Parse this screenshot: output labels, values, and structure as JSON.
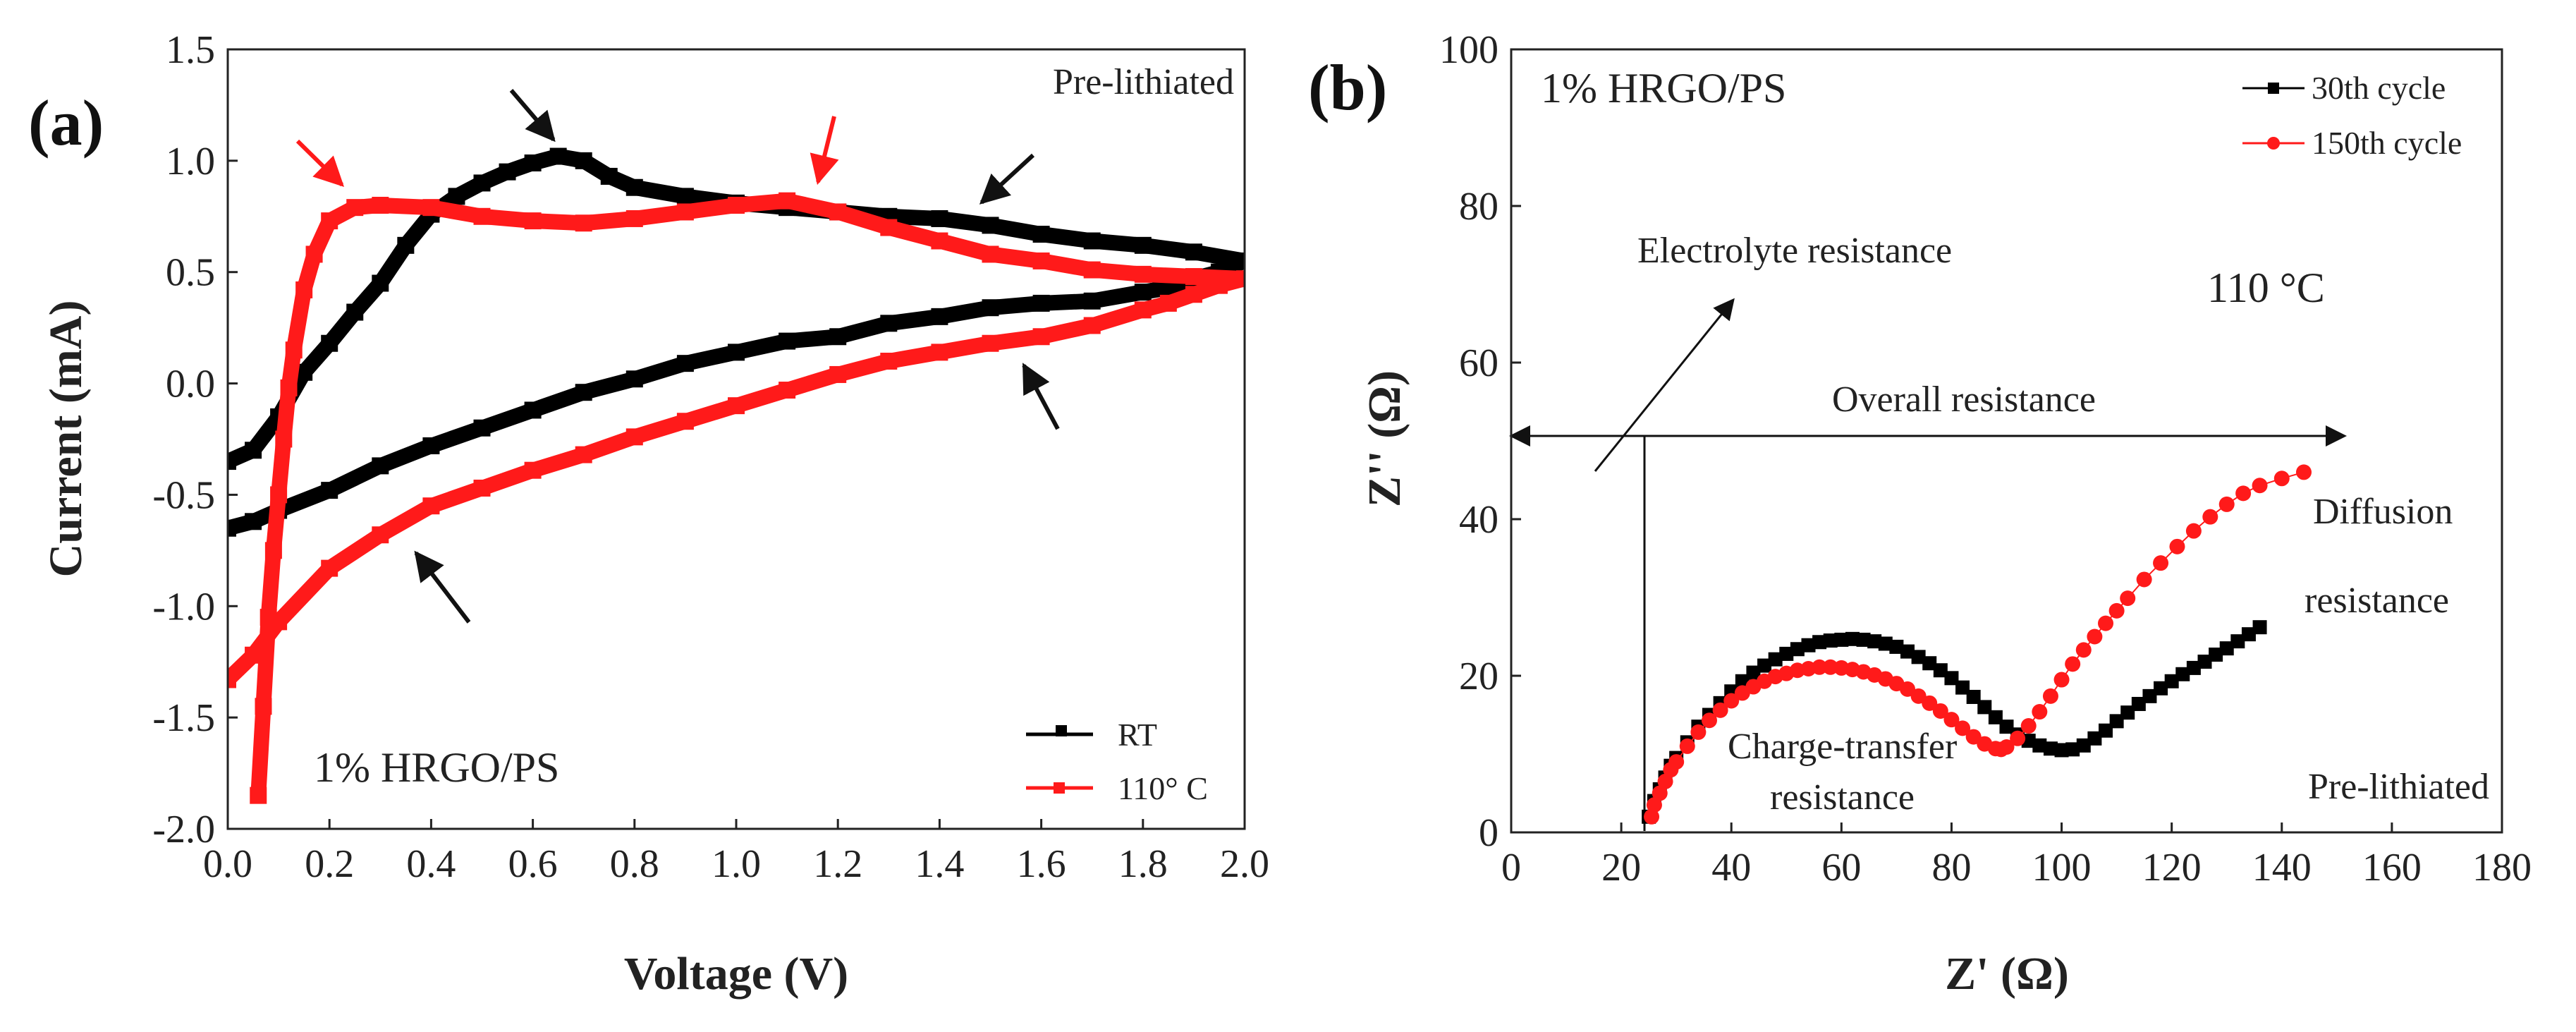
{
  "chart_data": [
    {
      "panel_label": "(a)",
      "type": "line",
      "xlabel": "Voltage (V)",
      "ylabel": "Current (mA)",
      "xlim": [
        0.0,
        2.0
      ],
      "ylim": [
        -2.0,
        1.5
      ],
      "xticks": [
        "0.0",
        "0.2",
        "0.4",
        "0.6",
        "0.8",
        "1.0",
        "1.2",
        "1.4",
        "1.6",
        "1.8",
        "2.0"
      ],
      "yticks": [
        "-2.0",
        "-1.5",
        "-1.0",
        "-0.5",
        "0.0",
        "0.5",
        "1.0",
        "1.5"
      ],
      "annotations": {
        "pre_lithiated": "Pre-lithiated",
        "material": "1% HRGO/PS"
      },
      "legend": {
        "position": "bottom-right",
        "entries": [
          {
            "name": "RT"
          },
          {
            "name": "110° C"
          }
        ]
      },
      "series": [
        {
          "name": "RT",
          "color": "#000000",
          "x": [
            0.0,
            0.05,
            0.1,
            0.15,
            0.2,
            0.25,
            0.3,
            0.35,
            0.4,
            0.45,
            0.5,
            0.55,
            0.6,
            0.65,
            0.7,
            0.75,
            0.8,
            0.9,
            1.0,
            1.1,
            1.2,
            1.3,
            1.4,
            1.5,
            1.6,
            1.7,
            1.8,
            1.9,
            2.0,
            1.95,
            1.9,
            1.85,
            1.8,
            1.7,
            1.6,
            1.5,
            1.4,
            1.3,
            1.2,
            1.1,
            1.0,
            0.9,
            0.8,
            0.7,
            0.6,
            0.5,
            0.4,
            0.3,
            0.2,
            0.1,
            0.05,
            0.0
          ],
          "y": [
            -0.35,
            -0.3,
            -0.15,
            0.05,
            0.18,
            0.32,
            0.45,
            0.62,
            0.76,
            0.84,
            0.9,
            0.95,
            0.99,
            1.02,
            1.0,
            0.93,
            0.88,
            0.84,
            0.81,
            0.79,
            0.77,
            0.75,
            0.74,
            0.71,
            0.67,
            0.64,
            0.62,
            0.59,
            0.55,
            0.5,
            0.47,
            0.43,
            0.41,
            0.37,
            0.36,
            0.34,
            0.3,
            0.27,
            0.21,
            0.19,
            0.14,
            0.09,
            0.02,
            -0.04,
            -0.12,
            -0.2,
            -0.28,
            -0.37,
            -0.48,
            -0.57,
            -0.62,
            -0.65
          ]
        },
        {
          "name": "110° C",
          "color": "#ff1a1a",
          "x": [
            0.06,
            0.07,
            0.08,
            0.09,
            0.1,
            0.11,
            0.12,
            0.13,
            0.15,
            0.17,
            0.2,
            0.25,
            0.3,
            0.4,
            0.5,
            0.6,
            0.7,
            0.8,
            0.9,
            1.0,
            1.1,
            1.2,
            1.3,
            1.4,
            1.5,
            1.6,
            1.7,
            1.8,
            1.9,
            2.0,
            1.95,
            1.9,
            1.85,
            1.8,
            1.7,
            1.6,
            1.5,
            1.4,
            1.3,
            1.2,
            1.1,
            1.0,
            0.9,
            0.8,
            0.7,
            0.6,
            0.5,
            0.4,
            0.3,
            0.2,
            0.1,
            0.05,
            0.0
          ],
          "y": [
            -1.85,
            -1.45,
            -1.05,
            -0.75,
            -0.5,
            -0.25,
            -0.02,
            0.15,
            0.42,
            0.58,
            0.73,
            0.79,
            0.8,
            0.79,
            0.75,
            0.73,
            0.72,
            0.74,
            0.77,
            0.8,
            0.82,
            0.77,
            0.7,
            0.64,
            0.58,
            0.55,
            0.51,
            0.49,
            0.48,
            0.47,
            0.44,
            0.4,
            0.36,
            0.33,
            0.26,
            0.21,
            0.18,
            0.14,
            0.1,
            0.04,
            -0.03,
            -0.1,
            -0.17,
            -0.24,
            -0.32,
            -0.39,
            -0.47,
            -0.55,
            -0.68,
            -0.83,
            -1.07,
            -1.22,
            -1.33
          ]
        }
      ]
    },
    {
      "panel_label": "(b)",
      "type": "scatter",
      "xlabel": "Z' (Ω)",
      "ylabel": "Z'' (Ω)",
      "xlim": [
        0,
        180
      ],
      "ylim": [
        0,
        100
      ],
      "xticks": [
        "0",
        "20",
        "40",
        "60",
        "80",
        "100",
        "120",
        "140",
        "160",
        "180"
      ],
      "yticks": [
        "0",
        "20",
        "40",
        "60",
        "80",
        "100"
      ],
      "annotations": {
        "material": "1% HRGO/PS",
        "electrolyte_resistance": "Electrolyte resistance",
        "overall_resistance": "Overall resistance",
        "temperature": "110 °C",
        "diffusion_resistance_line1": "Diffusion",
        "diffusion_resistance_line2": "resistance",
        "charge_transfer_line1": "Charge-transfer",
        "charge_transfer_line2": "resistance",
        "pre_lithiated": "Pre-lithiated"
      },
      "legend": {
        "position": "top-right",
        "entries": [
          {
            "name": "30th cycle"
          },
          {
            "name": "150th cycle"
          }
        ]
      },
      "series": [
        {
          "name": "30th cycle",
          "color": "#000000",
          "x": [
            25,
            26,
            27,
            28,
            29,
            30,
            32,
            34,
            36,
            38,
            40,
            42,
            44,
            46,
            48,
            50,
            52,
            54,
            56,
            58,
            60,
            62,
            64,
            66,
            68,
            70,
            72,
            74,
            76,
            78,
            80,
            82,
            84,
            86,
            88,
            90,
            92,
            94,
            96,
            98,
            100,
            102,
            104,
            106,
            108,
            110,
            112,
            114,
            116,
            118,
            120,
            122,
            124,
            126,
            128,
            130,
            132,
            134,
            136
          ],
          "x_note": "",
          "y": [
            2,
            4,
            5.5,
            7,
            8.5,
            9.5,
            11.5,
            13.5,
            15,
            16.5,
            18,
            19.3,
            20.4,
            21.3,
            22.1,
            22.8,
            23.4,
            23.9,
            24.3,
            24.5,
            24.6,
            24.7,
            24.6,
            24.4,
            24.1,
            23.7,
            23.1,
            22.4,
            21.6,
            20.7,
            19.7,
            18.5,
            17.3,
            16,
            14.7,
            13.5,
            12.5,
            11.7,
            11.1,
            10.7,
            10.5,
            10.6,
            11.1,
            12,
            13,
            14.2,
            15.3,
            16.4,
            17.4,
            18.4,
            19.3,
            20.2,
            21,
            21.8,
            22.7,
            23.5,
            24.4,
            25.3,
            26.2
          ]
        },
        {
          "name": "150th cycle",
          "color": "#ff1a1a",
          "x": [
            25.5,
            26,
            27,
            28,
            29,
            30,
            32,
            34,
            36,
            38,
            40,
            42,
            44,
            46,
            48,
            50,
            52,
            54,
            56,
            58,
            60,
            62,
            64,
            66,
            68,
            70,
            72,
            74,
            76,
            78,
            80,
            82,
            84,
            86,
            88,
            89,
            90,
            92,
            94,
            96,
            98,
            100,
            102,
            104,
            106,
            108,
            110,
            112,
            115,
            118,
            121,
            124,
            127,
            130,
            133,
            136,
            140,
            144
          ],
          "y": [
            2,
            3.5,
            5,
            6.5,
            8,
            9,
            11,
            12.8,
            14.3,
            15.6,
            16.8,
            17.8,
            18.6,
            19.3,
            19.9,
            20.3,
            20.7,
            20.9,
            21.1,
            21.1,
            21.0,
            20.8,
            20.5,
            20.1,
            19.6,
            19.0,
            18.3,
            17.4,
            16.5,
            15.5,
            14.4,
            13.3,
            12.2,
            11.3,
            10.7,
            10.6,
            10.9,
            12.0,
            13.6,
            15.4,
            17.4,
            19.5,
            21.5,
            23.3,
            25.0,
            26.7,
            28.3,
            29.9,
            32.3,
            34.4,
            36.5,
            38.5,
            40.3,
            41.9,
            43.3,
            44.3,
            45.2,
            46.0
          ]
        }
      ]
    }
  ]
}
